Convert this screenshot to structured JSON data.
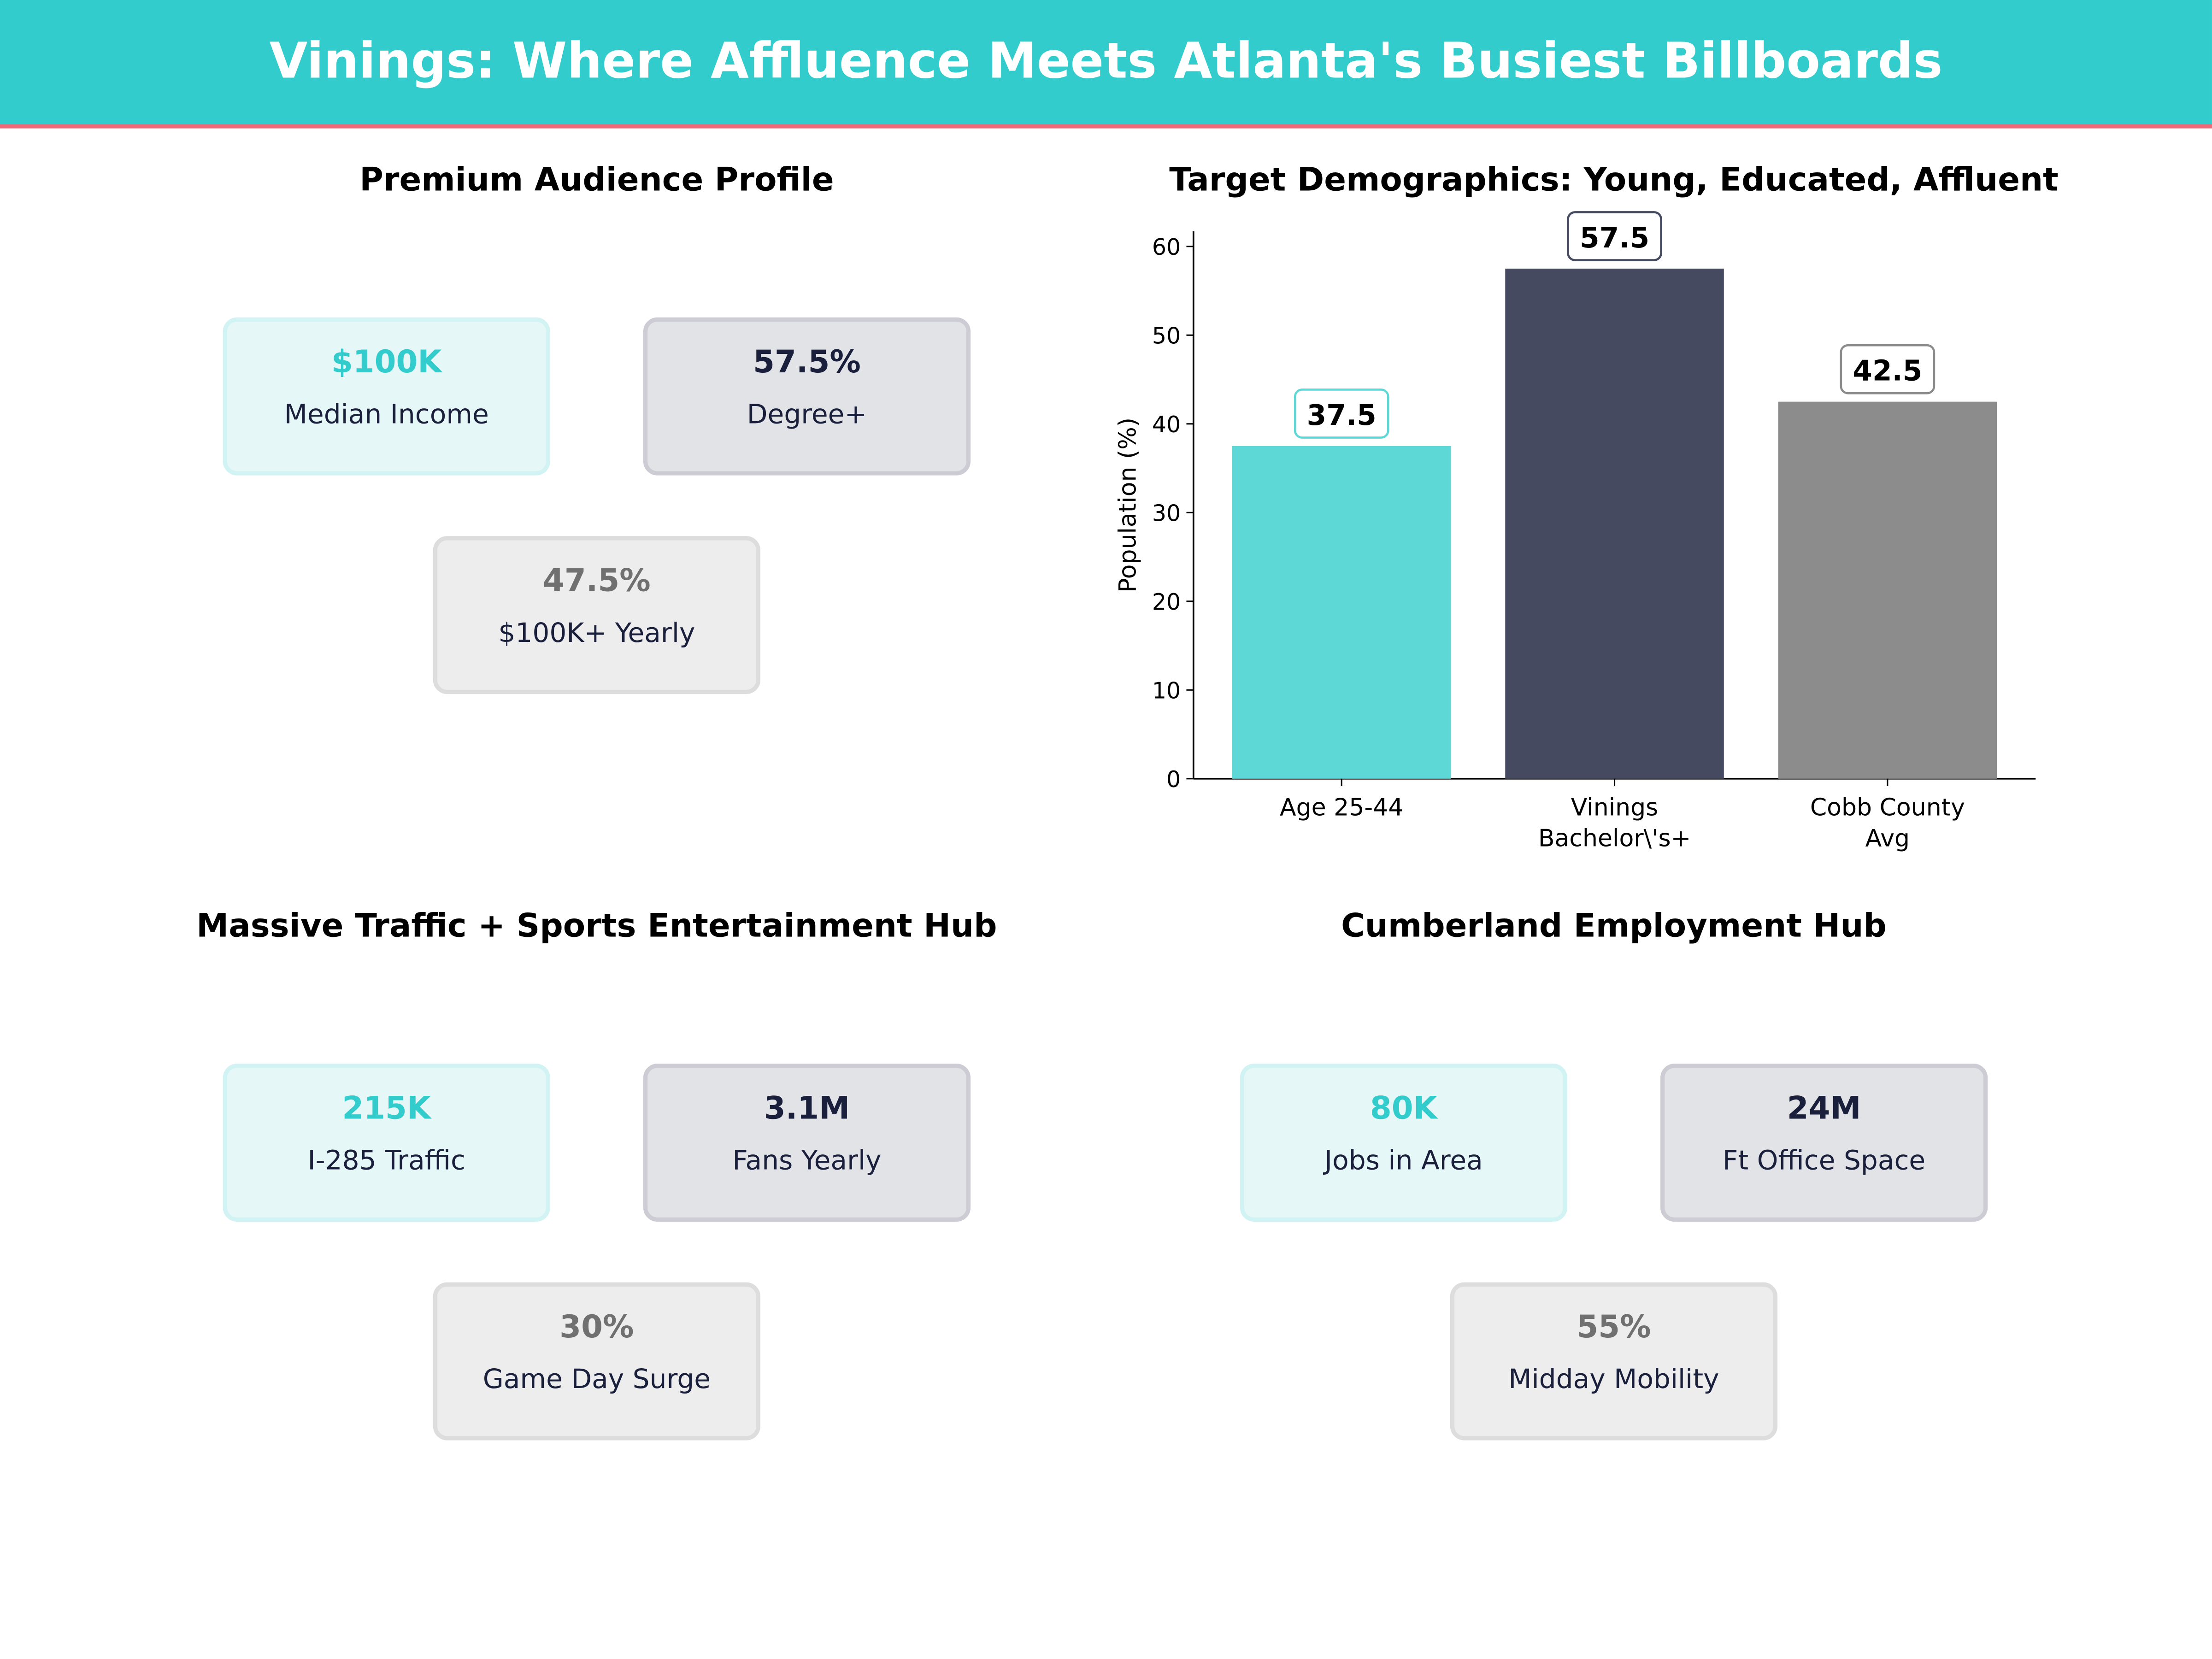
{
  "title": "Vinings: Where Affluence Meets Atlanta's Busiest Billboards",
  "panels": {
    "audience": {
      "title": "Premium Audience Profile",
      "cards": [
        {
          "value": "$100K",
          "label": "Median Income"
        },
        {
          "value": "57.5%",
          "label": "Degree+"
        },
        {
          "value": "47.5%",
          "label": "$100K+ Yearly"
        }
      ]
    },
    "traffic": {
      "title": "Massive Traffic + Sports Entertainment Hub",
      "cards": [
        {
          "value": "215K",
          "label": "I-285 Traffic"
        },
        {
          "value": "3.1M",
          "label": "Fans Yearly"
        },
        {
          "value": "30%",
          "label": "Game Day Surge"
        }
      ]
    },
    "employment": {
      "title": "Cumberland Employment Hub",
      "cards": [
        {
          "value": "80K",
          "label": "Jobs in Area"
        },
        {
          "value": "24M",
          "label": "Ft Office Space"
        },
        {
          "value": "55%",
          "label": "Midday Mobility"
        }
      ]
    }
  },
  "chart_data": {
    "type": "bar",
    "title": "Target Demographics: Young, Educated, Affluent",
    "categories": [
      "Age 25-44",
      "Vinings\nBachelor\\'s+",
      "Cobb County\nAvg"
    ],
    "values": [
      37.5,
      57.5,
      42.5
    ],
    "data_labels": [
      "37.5",
      "57.5",
      "42.5"
    ],
    "colors": [
      "#5DD8D6",
      "#464A60",
      "#8C8C8C"
    ],
    "label_border_colors": [
      "#5DD8D6",
      "#464A60",
      "#8C8C8C"
    ],
    "ylabel": "Population (%)",
    "xlabel": "",
    "ylim": [
      0,
      61.7
    ],
    "yticks": [
      0,
      10,
      20,
      30,
      40,
      50,
      60
    ],
    "grid": false
  },
  "colors": {
    "accent": "#33CCCC",
    "header_rule": "#F06B78",
    "navy": "#1a1f3c"
  }
}
